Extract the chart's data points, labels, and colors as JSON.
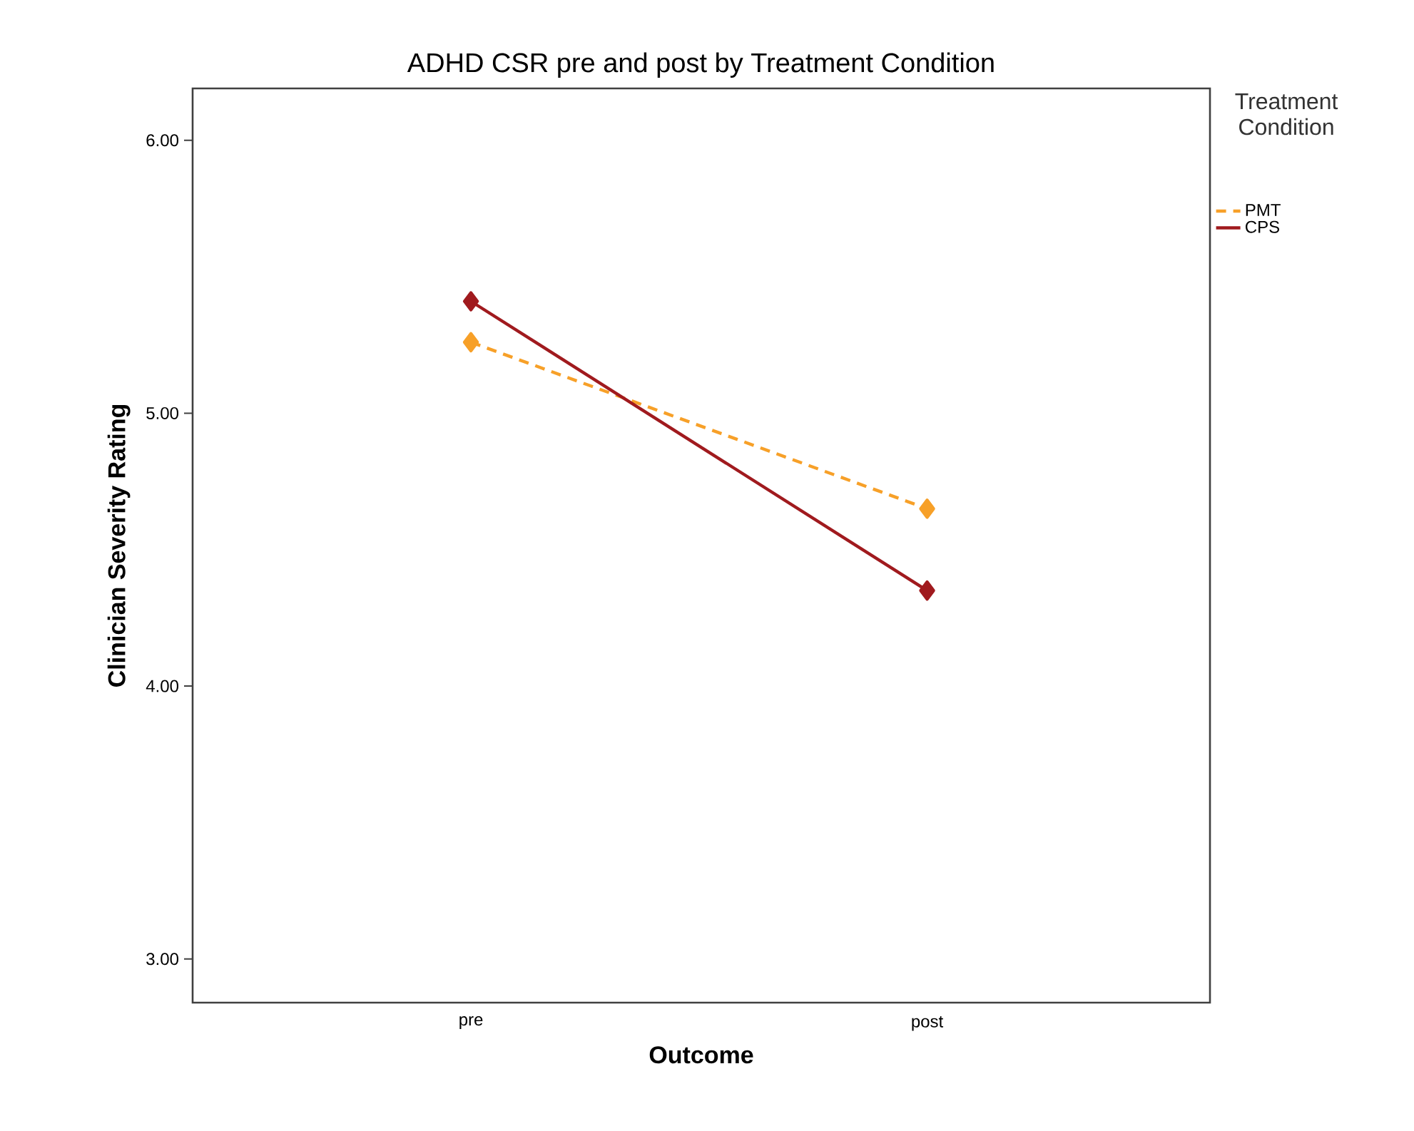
{
  "chart_data": {
    "type": "line",
    "title": "ADHD CSR pre and post by Treatment Condition",
    "xlabel": "Outcome",
    "ylabel": "Clinician Severity Rating",
    "legend_title": "Treatment Condition",
    "categories": [
      "pre",
      "post"
    ],
    "series": [
      {
        "name": "PMT",
        "color": "#f7a028",
        "values": [
          5.26,
          4.65
        ],
        "line_style": "dashed"
      },
      {
        "name": "CPS",
        "color": "#a01a1e",
        "values": [
          5.41,
          4.35
        ],
        "line_style": "solid"
      }
    ],
    "ylim": [
      2.84,
      6.19
    ],
    "yticks": [
      {
        "value": 3,
        "label": "3.00"
      },
      {
        "value": 4,
        "label": "4.00"
      },
      {
        "value": 5,
        "label": "5.00"
      },
      {
        "value": 6,
        "label": "6.00"
      }
    ],
    "marker": "diamond",
    "legend": "top right",
    "grid": false
  }
}
